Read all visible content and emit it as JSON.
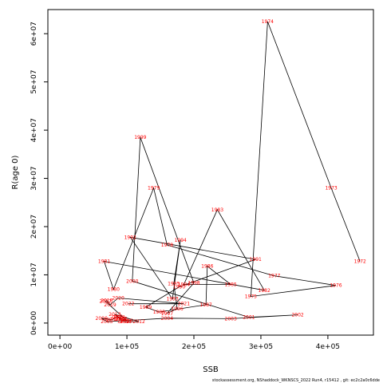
{
  "chart_data": {
    "type": "line",
    "xlabel": "SSB",
    "ylabel": "R(age 0)",
    "xlim": [
      -18000,
      468000
    ],
    "ylim": [
      -2500000,
      65000000
    ],
    "x_ticks": [
      0,
      100000,
      200000,
      300000,
      400000
    ],
    "x_tick_labels": [
      "0e+00",
      "1e+05",
      "2e+05",
      "3e+05",
      "4e+05"
    ],
    "y_ticks": [
      0,
      10000000,
      20000000,
      30000000,
      40000000,
      50000000,
      60000000
    ],
    "y_tick_labels": [
      "0e+00",
      "1e+07",
      "2e+07",
      "3e+07",
      "4e+07",
      "5e+07",
      "6e+07"
    ],
    "label_color": "#ff0000",
    "line_color": "#000000",
    "grid": false,
    "footer": "stockassessment.org, NShaddock_WKNSCS_2022 Run4, r15412 , git: ec2c2a0c6dde",
    "points": [
      {
        "year": "1972",
        "x": 448000,
        "y": 12800000
      },
      {
        "year": "1973",
        "x": 405000,
        "y": 28000000
      },
      {
        "year": "1974",
        "x": 310000,
        "y": 62500000
      },
      {
        "year": "1975",
        "x": 285000,
        "y": 5500000
      },
      {
        "year": "1976",
        "x": 412000,
        "y": 7800000
      },
      {
        "year": "1977",
        "x": 320000,
        "y": 9800000
      },
      {
        "year": "1978",
        "x": 160000,
        "y": 16200000
      },
      {
        "year": "1979",
        "x": 140000,
        "y": 28000000
      },
      {
        "year": "1980",
        "x": 80000,
        "y": 7000000
      },
      {
        "year": "1981",
        "x": 66000,
        "y": 12800000
      },
      {
        "year": "1982",
        "x": 305000,
        "y": 6800000
      },
      {
        "year": "1983",
        "x": 235000,
        "y": 23500000
      },
      {
        "year": "1984",
        "x": 185000,
        "y": 8000000
      },
      {
        "year": "1985",
        "x": 255000,
        "y": 8000000
      },
      {
        "year": "1986",
        "x": 220000,
        "y": 11800000
      },
      {
        "year": "1987",
        "x": 218000,
        "y": 3800000
      },
      {
        "year": "1988",
        "x": 148000,
        "y": 2300000
      },
      {
        "year": "1989",
        "x": 128000,
        "y": 3300000
      },
      {
        "year": "1990",
        "x": 178000,
        "y": 7500000
      },
      {
        "year": "1991",
        "x": 292000,
        "y": 13200000
      },
      {
        "year": "1992",
        "x": 105000,
        "y": 17800000
      },
      {
        "year": "1993",
        "x": 168000,
        "y": 5000000
      },
      {
        "year": "1994",
        "x": 180000,
        "y": 17200000
      },
      {
        "year": "1995",
        "x": 170000,
        "y": 8200000
      },
      {
        "year": "1996",
        "x": 175000,
        "y": 3000000
      },
      {
        "year": "1997",
        "x": 160000,
        "y": 2000000
      },
      {
        "year": "1998",
        "x": 200000,
        "y": 8300000
      },
      {
        "year": "1999",
        "x": 120000,
        "y": 38500000
      },
      {
        "year": "2000",
        "x": 108000,
        "y": 8700000
      },
      {
        "year": "2001",
        "x": 282000,
        "y": 1200000
      },
      {
        "year": "2002",
        "x": 355000,
        "y": 1700000
      },
      {
        "year": "2003",
        "x": 255000,
        "y": 900000
      },
      {
        "year": "2004",
        "x": 160000,
        "y": 1000000
      },
      {
        "year": "2005",
        "x": 70000,
        "y": 300000
      },
      {
        "year": "2006",
        "x": 62000,
        "y": 1000000
      },
      {
        "year": "2007",
        "x": 78000,
        "y": 700000
      },
      {
        "year": "2008",
        "x": 85000,
        "y": 1300000
      },
      {
        "year": "2009",
        "x": 90000,
        "y": 800000
      },
      {
        "year": "2010",
        "x": 95000,
        "y": 400000
      },
      {
        "year": "2011",
        "x": 98000,
        "y": 300000
      },
      {
        "year": "2012",
        "x": 118000,
        "y": 300000
      },
      {
        "year": "2013",
        "x": 82000,
        "y": 1800000
      },
      {
        "year": "2014",
        "x": 88000,
        "y": 1200000
      },
      {
        "year": "2015",
        "x": 92000,
        "y": 900000
      },
      {
        "year": "2016",
        "x": 100000,
        "y": 500000
      },
      {
        "year": "2017",
        "x": 68000,
        "y": 4500000
      },
      {
        "year": "2018",
        "x": 70000,
        "y": 4700000
      },
      {
        "year": "2019",
        "x": 75000,
        "y": 3800000
      },
      {
        "year": "2020",
        "x": 87000,
        "y": 5200000
      },
      {
        "year": "2021",
        "x": 185000,
        "y": 4000000
      },
      {
        "year": "2022",
        "x": 102000,
        "y": 4000000
      }
    ]
  }
}
